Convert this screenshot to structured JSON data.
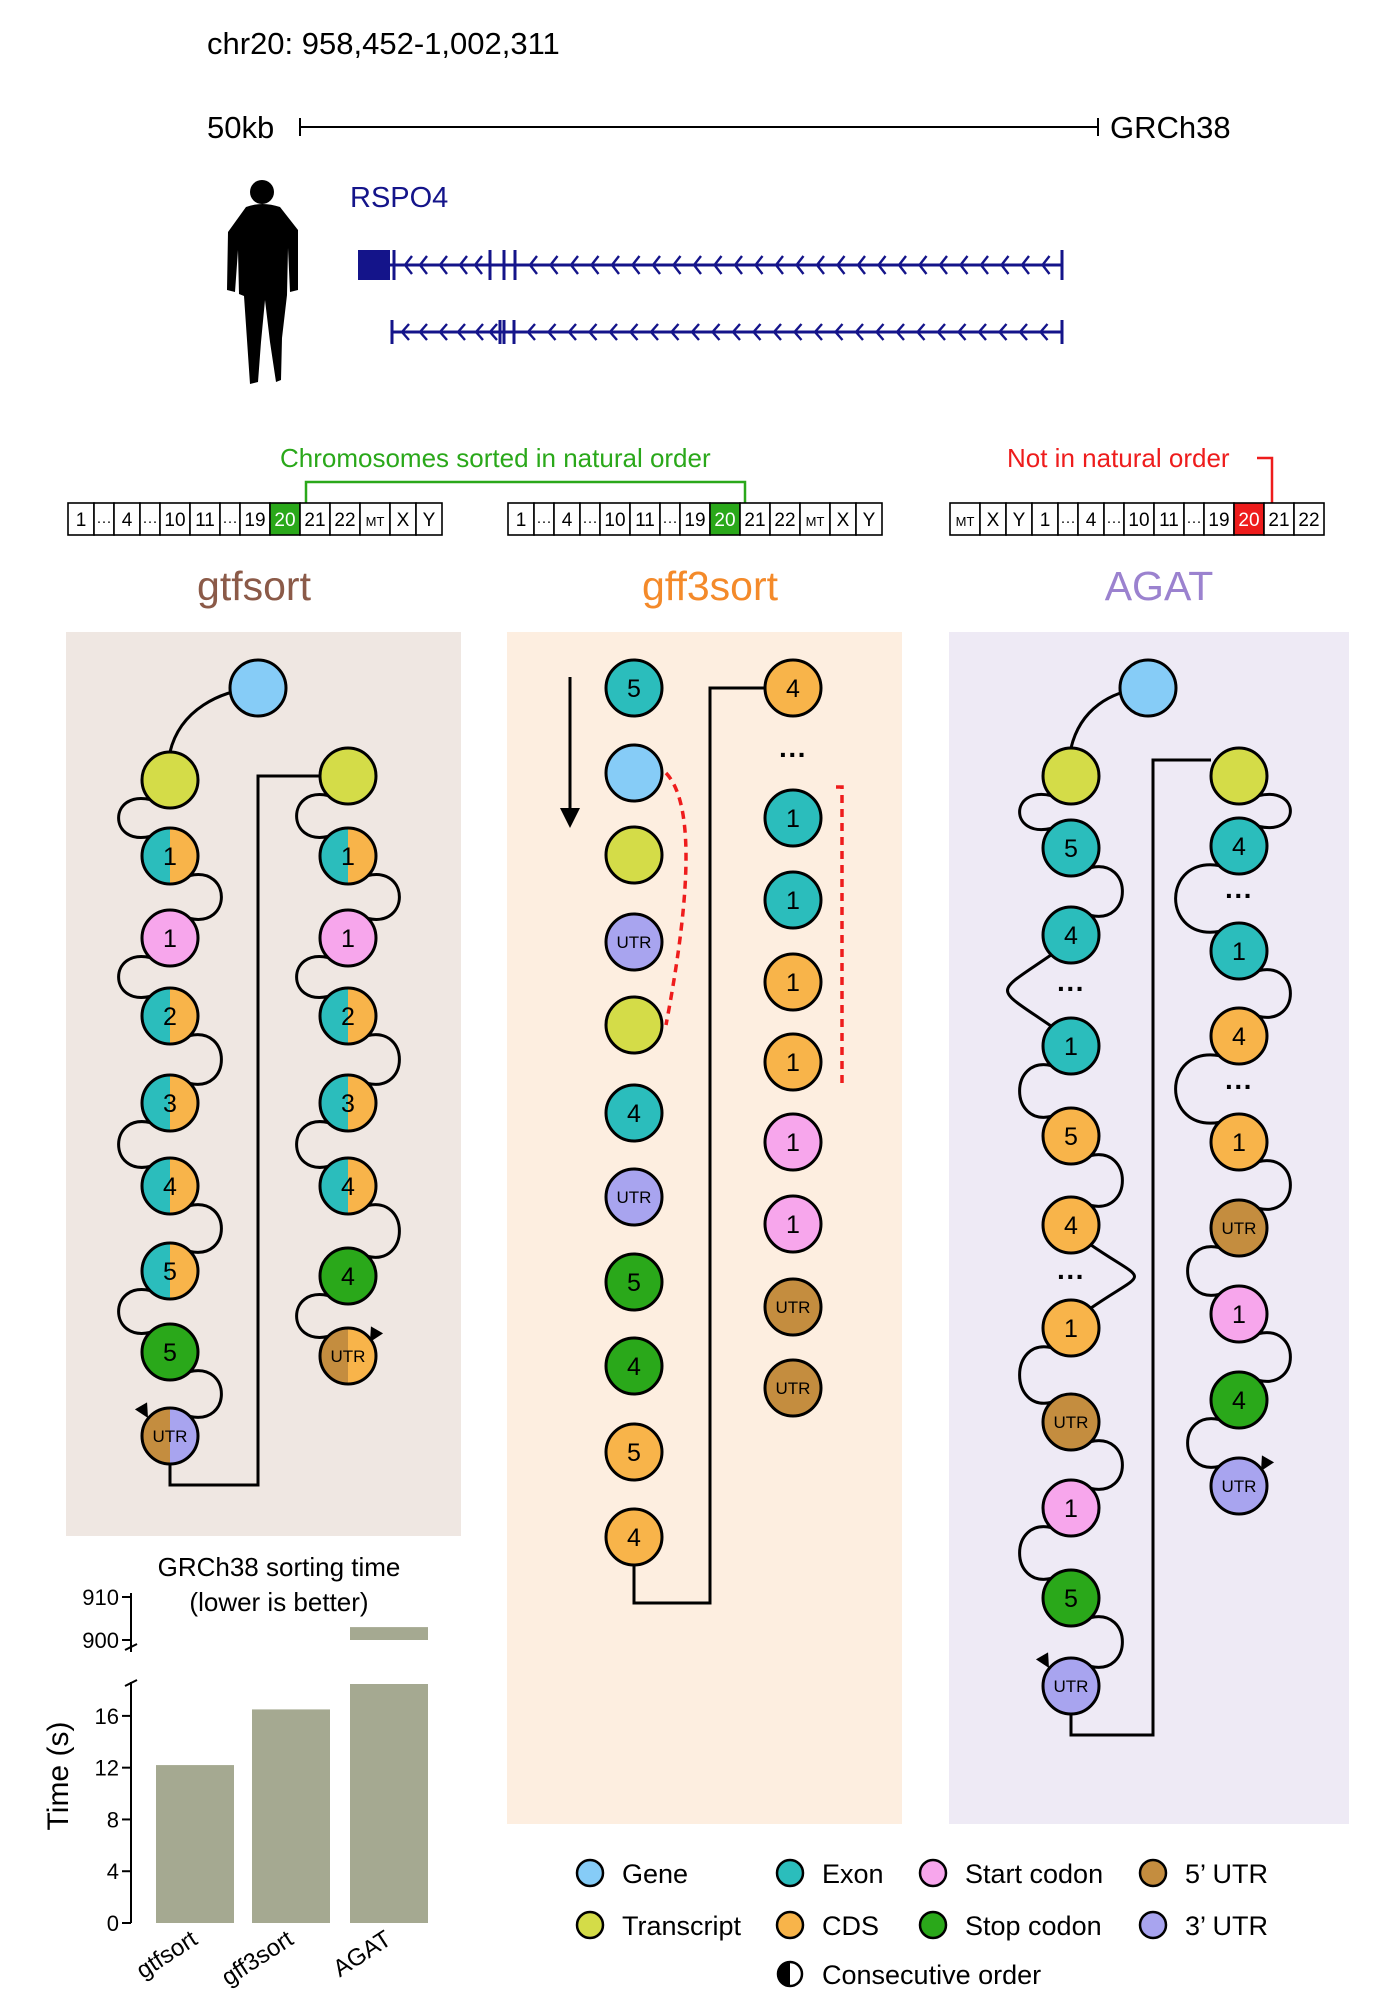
{
  "header": {
    "locus": "chr20: 958,452-1,002,311",
    "scale_label": "50kb",
    "assembly": "GRCh38",
    "gene_name": "RSPO4"
  },
  "chromosomes": {
    "natural_label": "Chromosomes sorted in natural order",
    "unnatural_label": "Not in natural order",
    "natural_order": [
      "1",
      "···",
      "4",
      "···",
      "10",
      "11",
      "···",
      "19",
      "20",
      "21",
      "22",
      "MT",
      "X",
      "Y"
    ],
    "agat_order": [
      "MT",
      "X",
      "Y",
      "1",
      "···",
      "4",
      "···",
      "10",
      "11",
      "···",
      "19",
      "20",
      "21",
      "22"
    ]
  },
  "tools": {
    "gtfsort": "gtfsort",
    "gff3sort": "gff3sort",
    "agat": "AGAT"
  },
  "colors": {
    "gene": "#86ccf7",
    "transcript": "#d4dc48",
    "exon": "#2bbdbc",
    "cds": "#f8b44a",
    "start_codon": "#f7a6ec",
    "stop_codon": "#2aa81a",
    "utr5": "#c48d3f",
    "utr3": "#a8a4ef",
    "gtfsort_panel": "#efe7e2",
    "gff3sort_panel": "#fdeee0",
    "agat_panel": "#eeeaf5",
    "gtfsort_title": "#8b5a48",
    "gff3sort_title": "#f48a2a",
    "agat_title": "#9b82cf",
    "natural_green": "#2aa81a",
    "unnatural_red": "#ee1c1c",
    "gene_track": "#14148a",
    "bar": "#a5a991"
  },
  "legend": [
    {
      "label": "Gene",
      "kind": "gene"
    },
    {
      "label": "Exon",
      "kind": "exon"
    },
    {
      "label": "Start codon",
      "kind": "start_codon"
    },
    {
      "label": "5’ UTR",
      "kind": "utr5"
    },
    {
      "label": "Transcript",
      "kind": "transcript"
    },
    {
      "label": "CDS",
      "kind": "cds"
    },
    {
      "label": "Stop codon",
      "kind": "stop_codon"
    },
    {
      "label": "3’ UTR",
      "kind": "utr3"
    },
    {
      "label": "Consecutive order",
      "kind": "consecutive"
    }
  ],
  "node_labels": {
    "utr": "UTR",
    "ellipsis": "···"
  },
  "chart_data": {
    "type": "bar",
    "title": "GRCh38 sorting time",
    "subtitle": "(lower is better)",
    "ylabel": "Time (s)",
    "xlabel": "",
    "categories": [
      "gtfsort",
      "gff3sort",
      "AGAT"
    ],
    "values": [
      12.2,
      16.5,
      900
    ],
    "ylim_lower": [
      0,
      18
    ],
    "ylim_upper": [
      900,
      910
    ],
    "yticks_lower": [
      0,
      4,
      8,
      12,
      16
    ],
    "yticks_upper": [
      900,
      910
    ],
    "axis_break": true,
    "grid": false
  }
}
